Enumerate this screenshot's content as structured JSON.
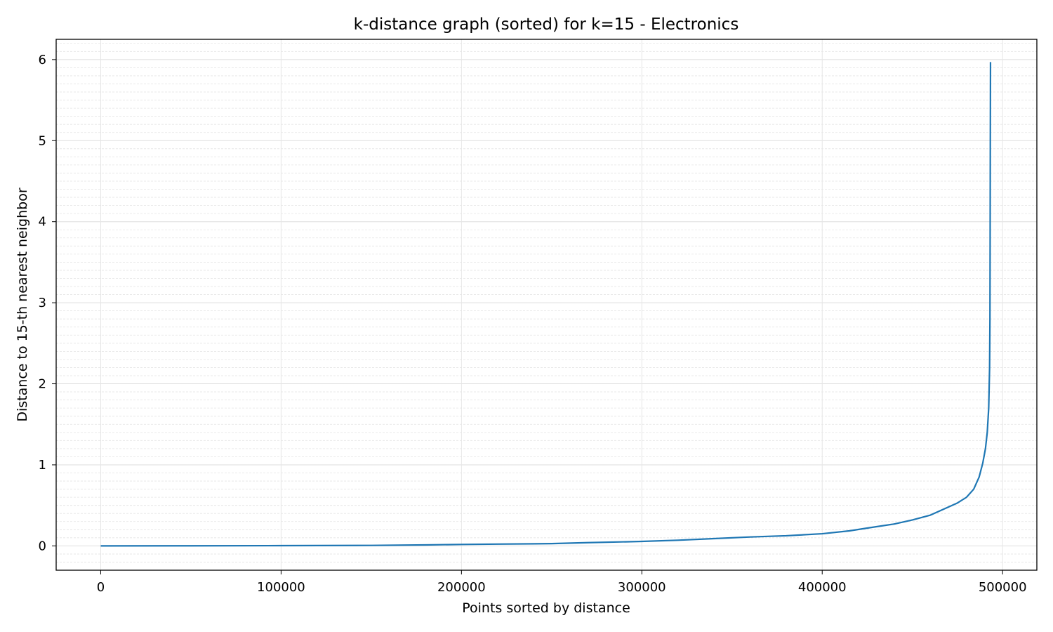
{
  "chart_data": {
    "type": "line",
    "title": "k-distance graph (sorted) for k=15 - Electronics",
    "xlabel": "Points sorted by distance",
    "ylabel": "Distance to 15-th nearest neighbor",
    "xlim": [
      -24700,
      519000
    ],
    "ylim": [
      -0.3,
      6.25
    ],
    "xticks": [
      0,
      100000,
      200000,
      300000,
      400000,
      500000
    ],
    "xtick_labels": [
      "0",
      "100000",
      "200000",
      "300000",
      "400000",
      "500000"
    ],
    "yticks": [
      0,
      1,
      2,
      3,
      4,
      5,
      6
    ],
    "ytick_labels": [
      "0",
      "1",
      "2",
      "3",
      "4",
      "5",
      "6"
    ],
    "grid": "major solid, minor dashed",
    "line_color": "#1f77b4",
    "series": [
      {
        "x": [
          0,
          50000,
          100000,
          150000,
          180000,
          200000,
          220000,
          250000,
          270000,
          300000,
          320000,
          340000,
          360000,
          380000,
          400000,
          415000,
          425000,
          440000,
          450000,
          460000,
          465000,
          470000,
          475000,
          480000,
          484000,
          487000,
          489000,
          490500,
          491500,
          492300,
          492800,
          493000,
          493100,
          493200,
          493300
        ],
        "y": [
          0.0,
          0.001,
          0.003,
          0.006,
          0.012,
          0.018,
          0.022,
          0.028,
          0.04,
          0.055,
          0.07,
          0.09,
          0.11,
          0.125,
          0.15,
          0.185,
          0.22,
          0.27,
          0.32,
          0.38,
          0.43,
          0.48,
          0.53,
          0.6,
          0.7,
          0.85,
          1.02,
          1.2,
          1.4,
          1.7,
          2.2,
          2.8,
          3.8,
          5.0,
          5.97
        ]
      }
    ]
  }
}
